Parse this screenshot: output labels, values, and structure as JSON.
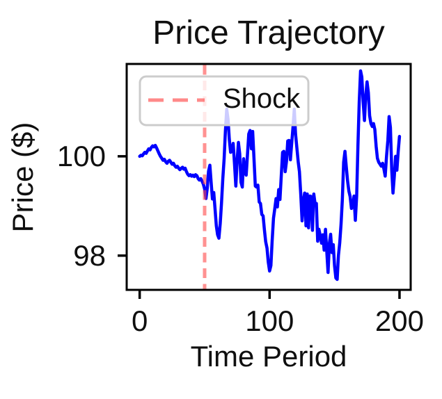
{
  "figure": {
    "background": "#ffffff",
    "text_color": "#0f0f0f",
    "frame_color": "#000000"
  },
  "chart_data": {
    "type": "line",
    "title": "Price Trajectory",
    "xlabel": "Time Period",
    "ylabel": "Price ($)",
    "x_ticks": [
      0,
      100,
      200
    ],
    "x_tick_labels": [
      "0",
      "100",
      "200"
    ],
    "y_ticks": [
      98,
      100
    ],
    "y_tick_labels": [
      "98",
      "100"
    ],
    "xlim": [
      -10,
      208.6
    ],
    "ylim": [
      97.31,
      101.86
    ],
    "grid": false,
    "legend": {
      "position": "upper left",
      "items": [
        {
          "label": "Shock",
          "style": "dashed",
          "color": "#ff4a4a"
        }
      ],
      "border_color": "#cccccc",
      "background": "rgba(255,255,255,0.8)"
    },
    "shock": {
      "x": 50,
      "color": "#ff4a4a",
      "opacity": 0.6
    },
    "series": [
      {
        "name": "Price",
        "color": "#0000ff",
        "x_start": 0,
        "x_step": 1,
        "values": [
          100.0,
          100.02,
          100.01,
          100.05,
          100.08,
          100.06,
          100.11,
          100.15,
          100.13,
          100.18,
          100.21,
          100.19,
          100.22,
          100.17,
          100.11,
          100.05,
          100.0,
          99.96,
          99.92,
          99.94,
          99.89,
          99.86,
          99.9,
          99.92,
          99.88,
          99.84,
          99.86,
          99.81,
          99.78,
          99.8,
          99.76,
          99.73,
          99.76,
          99.78,
          99.74,
          99.76,
          99.69,
          99.64,
          99.61,
          99.63,
          99.6,
          99.62,
          99.59,
          99.63,
          99.61,
          99.55,
          99.52,
          99.55,
          99.5,
          99.44,
          99.34,
          99.15,
          99.35,
          99.7,
          99.82,
          99.48,
          99.14,
          99.27,
          98.95,
          98.6,
          98.42,
          98.35,
          98.65,
          99.05,
          99.55,
          99.95,
          100.5,
          100.95,
          100.75,
          100.35,
          100.08,
          100.1,
          100.26,
          99.85,
          99.4,
          99.9,
          100.28,
          100.05,
          99.48,
          99.38,
          99.95,
          99.7,
          99.62,
          100.05,
          100.45,
          100.52,
          100.15,
          100.5,
          99.95,
          99.4,
          99.38,
          99.42,
          99.08,
          99.05,
          98.83,
          98.8,
          98.53,
          98.28,
          98.15,
          97.87,
          97.69,
          97.8,
          98.3,
          98.75,
          98.95,
          99.15,
          98.98,
          99.33,
          99.13,
          99.61,
          100.08,
          100.1,
          99.69,
          99.9,
          100.31,
          100.32,
          99.93,
          100.25,
          100.58,
          100.95,
          100.45,
          100.17,
          99.89,
          99.69,
          99.23,
          98.7,
          99.1,
          99.26,
          98.6,
          99.24,
          98.56,
          99.2,
          99.19,
          98.51,
          99.24,
          99.05,
          99.05,
          98.29,
          98.53,
          98.4,
          98.25,
          98.42,
          98.11,
          98.53,
          98.1,
          97.66,
          98.25,
          98.43,
          98.06,
          98.22,
          97.8,
          97.55,
          97.52,
          98.0,
          98.26,
          98.64,
          99.12,
          99.88,
          100.1,
          99.8,
          99.51,
          99.3,
          99.19,
          98.95,
          98.99,
          99.2,
          98.71,
          99.2,
          100.2,
          101.1,
          101.72,
          101.6,
          101.1,
          100.72,
          101.2,
          101.5,
          101.28,
          100.82,
          100.66,
          100.6,
          100.66,
          100.54,
          100.2,
          99.96,
          99.88,
          99.84,
          99.8,
          99.86,
          99.74,
          99.6,
          100.0,
          100.32,
          100.8,
          100.58,
          99.72,
          99.26,
          99.6,
          100.0,
          99.72,
          100.1,
          100.4
        ]
      }
    ]
  }
}
